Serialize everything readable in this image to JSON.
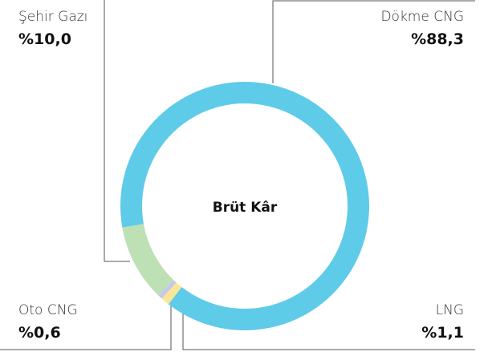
{
  "chart_data": {
    "type": "donut",
    "title": "Brüt Kâr",
    "categories": [
      "Dökme CNG",
      "LNG",
      "Oto CNG",
      "Şehir Gazı"
    ],
    "values": [
      88.3,
      1.1,
      0.6,
      10.0
    ],
    "value_labels": [
      "%88,3",
      "%1,1",
      "%0,6",
      "%10,0"
    ],
    "colors": [
      "#5ecbe8",
      "#fbe597",
      "#c6c8ea",
      "#bde0b5"
    ]
  }
}
